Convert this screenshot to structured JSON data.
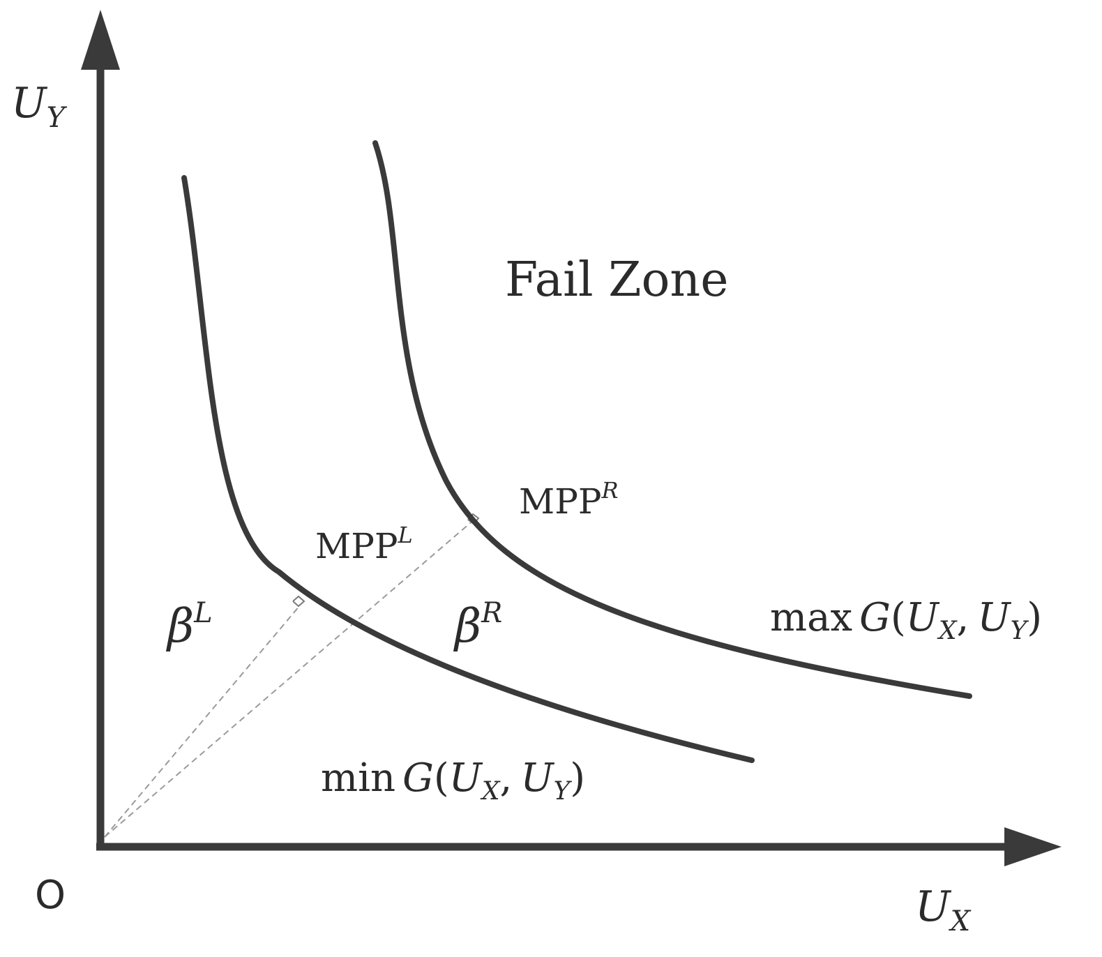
{
  "axes": {
    "origin_label": "O",
    "y_axis": {
      "main": "U",
      "sub": "Y"
    },
    "x_axis": {
      "main": "U",
      "sub": "X"
    }
  },
  "zone_label": "Fail Zone",
  "points": {
    "mpp_left": {
      "main": "MPP",
      "sup": "L"
    },
    "mpp_right": {
      "main": "MPP",
      "sup": "R"
    }
  },
  "distances": {
    "beta_left": {
      "main": "β",
      "sup": "L"
    },
    "beta_right": {
      "main": "β",
      "sup": "R"
    }
  },
  "curves": {
    "min_curve": {
      "op": "min",
      "func": "G",
      "open": "(",
      "arg1": "U",
      "arg1_sub": "X",
      "sep": ",",
      "arg2": "U",
      "arg2_sub": "Y",
      "close": ")"
    },
    "max_curve": {
      "op": "max",
      "func": "G",
      "open": "(",
      "arg1": "U",
      "arg1_sub": "X",
      "sep": ",",
      "arg2": "U",
      "arg2_sub": "Y",
      "close": ")"
    }
  },
  "colors": {
    "ink": "#3a3a3a",
    "dashed": "#9a9a9a",
    "text": "#2b2b2b"
  }
}
